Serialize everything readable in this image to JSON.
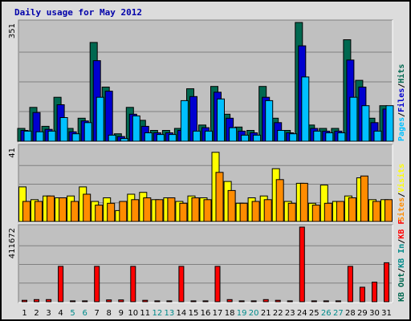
{
  "chart_data": {
    "type": "bar",
    "title": "Daily usage for May 2012",
    "categories": [
      "1",
      "2",
      "3",
      "4",
      "5",
      "6",
      "7",
      "8",
      "9",
      "10",
      "11",
      "12",
      "13",
      "14",
      "15",
      "16",
      "17",
      "18",
      "19",
      "20",
      "21",
      "22",
      "23",
      "24",
      "25",
      "26",
      "27",
      "28",
      "29",
      "30",
      "31"
    ],
    "weekend_days": [
      "5",
      "6",
      "12",
      "13",
      "19",
      "20",
      "26",
      "27"
    ],
    "colors": {
      "hits": "#006850",
      "files": "#0000d0",
      "pages": "#00c0ff",
      "visits": "#ffff00",
      "sites": "#ff8c00",
      "kb_f": "#ff0000",
      "kb_in": "#008b8b",
      "kb_out": "#006850",
      "weekend_label": "#008b8b",
      "weekday_label": "#000000",
      "title": "#0000aa"
    },
    "panels": [
      {
        "ymax_label": "351",
        "ylim": [
          0,
          351
        ],
        "legend": [
          {
            "name": "Hits",
            "color": "#006850"
          },
          {
            "name": "Files",
            "color": "#0000d0"
          },
          {
            "name": "Pages",
            "color": "#00c0ff"
          }
        ],
        "series": [
          {
            "name": "Hits",
            "values": [
              38,
              100,
              44,
              130,
              38,
              68,
              292,
              160,
              22,
              100,
              62,
              32,
              32,
              38,
              155,
              48,
              162,
              80,
              42,
              32,
              162,
              68,
              32,
              351,
              48,
              38,
              38,
              300,
              180,
              68,
              105
            ]
          },
          {
            "name": "Files",
            "values": [
              32,
              85,
              35,
              108,
              28,
              60,
              238,
              148,
              14,
              80,
              44,
              25,
              25,
              32,
              132,
              40,
              145,
              68,
              30,
              25,
              130,
              55,
              25,
              282,
              38,
              30,
              30,
              240,
              160,
              55,
              95
            ]
          },
          {
            "name": "Pages",
            "values": [
              30,
              28,
              30,
              70,
              22,
              55,
              130,
              18,
              8,
              75,
              25,
              20,
              20,
              120,
              30,
              30,
              125,
              40,
              18,
              18,
              120,
              32,
              22,
              190,
              30,
              25,
              25,
              130,
              105,
              30,
              105
            ]
          }
        ]
      },
      {
        "ymax_label": "41",
        "ylim": [
          0,
          41
        ],
        "legend": [
          {
            "name": "Visits",
            "color": "#ffff00"
          },
          {
            "name": "Sites",
            "color": "#ff8c00"
          }
        ],
        "series": [
          {
            "name": "Visits",
            "values": [
              19,
              12,
              14,
              13,
              14,
              19,
              11,
              13,
              6,
              15,
              16,
              12,
              13,
              11,
              14,
              13,
              38,
              22,
              10,
              13,
              14,
              29,
              11,
              21,
              10,
              20,
              11,
              14,
              24,
              12,
              12
            ]
          },
          {
            "name": "Sites",
            "values": [
              11,
              11,
              14,
              13,
              11,
              15,
              9,
              10,
              11,
              12,
              13,
              12,
              13,
              10,
              13,
              12,
              27,
              17,
              10,
              11,
              12,
              23,
              10,
              21,
              9,
              10,
              11,
              13,
              25,
              11,
              12
            ]
          }
        ]
      },
      {
        "ymax_label": "411672",
        "ylim": [
          0,
          411672
        ],
        "legend": [
          {
            "name": "KB F",
            "color": "#ff0000"
          },
          {
            "name": "KB In",
            "color": "#008b8b"
          },
          {
            "name": "KB Out",
            "color": "#006850"
          }
        ],
        "series": [
          {
            "name": "KB F",
            "values": [
              8000,
              12000,
              12000,
              195000,
              5000,
              5000,
              195000,
              10000,
              10000,
              195000,
              8000,
              5000,
              5000,
              195000,
              5000,
              5000,
              195000,
              12000,
              5000,
              5000,
              12000,
              8000,
              5000,
              411672,
              5000,
              5000,
              5000,
              195000,
              80000,
              108000,
              215000
            ]
          }
        ]
      }
    ]
  }
}
